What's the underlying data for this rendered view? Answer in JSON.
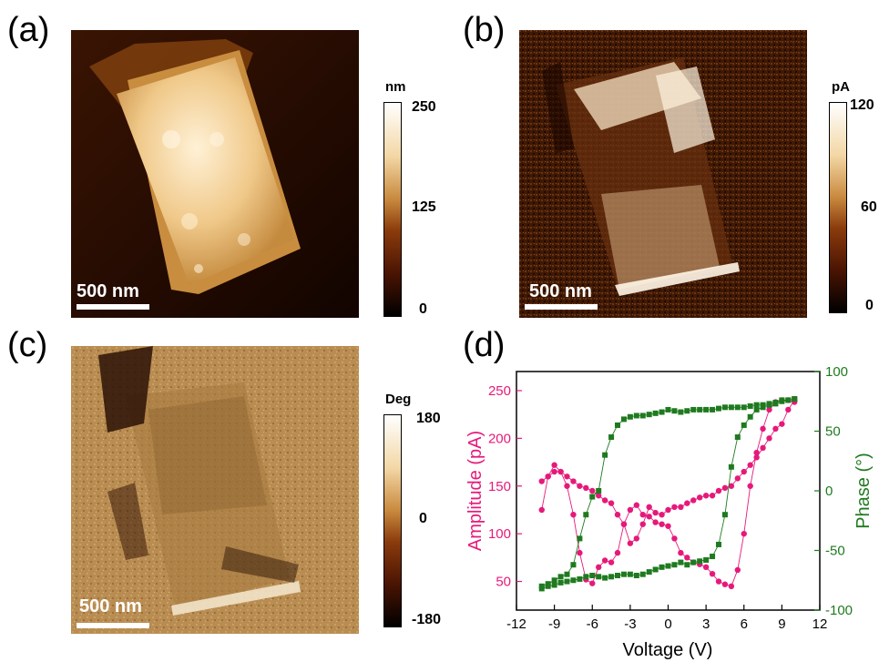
{
  "panels": {
    "a": {
      "label": "(a)",
      "scalebar": "500 nm",
      "colorbar": {
        "unit": "nm",
        "max": "250",
        "mid": "125",
        "min": "0"
      }
    },
    "b": {
      "label": "(b)",
      "scalebar": "500 nm",
      "colorbar": {
        "unit": "pA",
        "max": "120",
        "mid": "60",
        "min": "0"
      }
    },
    "c": {
      "label": "(c)",
      "scalebar": "500 nm",
      "colorbar": {
        "unit": "Deg",
        "max": "180",
        "mid": "0",
        "min": "-180"
      }
    },
    "d": {
      "label": "(d)"
    }
  },
  "colors": {
    "amplitude": "#e6197a",
    "phase": "#1f7a1f",
    "height_map": "afmhot",
    "bg": "#ffffff"
  },
  "chart_data": {
    "type": "scatter",
    "xlabel": "Voltage (V)",
    "ylabel_left": "Amplitude (pA)",
    "ylabel_right": "Phase (°)",
    "xlim": [
      -12,
      12
    ],
    "ylim_left": [
      20,
      270
    ],
    "ylim_right": [
      -100,
      100
    ],
    "xticks": [
      "-12",
      "-9",
      "-6",
      "-3",
      "0",
      "3",
      "6",
      "9",
      "12"
    ],
    "yticks_left": [
      "50",
      "100",
      "150",
      "200",
      "250"
    ],
    "yticks_right": [
      "-100",
      "-50",
      "0",
      "50",
      "100"
    ],
    "series": [
      {
        "axis": "left",
        "marker": "circle",
        "x": [
          -10,
          -9.5,
          -9,
          -8.5,
          -8,
          -7.5,
          -7,
          -6.5,
          -6,
          -5.5,
          -5,
          -4.5,
          -4,
          -3.5,
          -3,
          -2.5,
          -2,
          -1.5,
          -1,
          -0.5,
          0,
          0.5,
          1,
          1.5,
          2,
          2.5,
          3,
          3.5,
          4,
          4.5,
          5,
          5.5,
          6,
          6.5,
          7,
          7.5,
          8,
          8.5,
          9,
          9.5,
          10,
          10,
          9.5,
          9,
          8.5,
          8,
          7.5,
          7,
          6.5,
          6,
          5.5,
          5,
          4.5,
          4,
          3.5,
          3,
          2.5,
          2,
          1.5,
          1,
          0.5,
          0,
          -0.5,
          -1,
          -1.5,
          -2,
          -2.5,
          -3,
          -3.5,
          -4,
          -4.5,
          -5,
          -5.5,
          -6,
          -6.5,
          -7,
          -7.5,
          -8,
          -8.5,
          -9,
          -9.5,
          -10
        ],
        "y": [
          125,
          160,
          172,
          165,
          150,
          120,
          80,
          52,
          48,
          65,
          72,
          70,
          80,
          110,
          125,
          130,
          120,
          118,
          112,
          110,
          108,
          95,
          80,
          75,
          70,
          68,
          65,
          58,
          50,
          47,
          45,
          62,
          100,
          150,
          185,
          210,
          230,
          238,
          240,
          240,
          238,
          240,
          230,
          215,
          210,
          200,
          190,
          180,
          172,
          165,
          158,
          150,
          148,
          145,
          140,
          140,
          138,
          135,
          132,
          128,
          128,
          125,
          120,
          122,
          128,
          110,
          95,
          90,
          110,
          120,
          132,
          135,
          140,
          145,
          148,
          150,
          155,
          160,
          165,
          165,
          160,
          155
        ]
      },
      {
        "axis": "right",
        "marker": "square",
        "x": [
          -10,
          -9.5,
          -9,
          -8.5,
          -8,
          -7.5,
          -7,
          -6.5,
          -6,
          -5.5,
          -5,
          -4.5,
          -4,
          -3.5,
          -3,
          -2.5,
          -2,
          -1.5,
          -1,
          -0.5,
          0,
          0.5,
          1,
          1.5,
          2,
          2.5,
          3,
          3.5,
          4,
          4.5,
          5,
          5.5,
          6,
          6.5,
          7,
          7.5,
          8,
          8.5,
          9,
          9.5,
          10,
          10,
          9.5,
          9,
          8.5,
          8,
          7.5,
          7,
          6.5,
          6,
          5.5,
          5,
          4.5,
          4,
          3.5,
          3,
          2.5,
          2,
          1.5,
          1,
          0.5,
          0,
          -0.5,
          -1,
          -1.5,
          -2,
          -2.5,
          -3,
          -3.5,
          -4,
          -4.5,
          -5,
          -5.5,
          -6,
          -6.5,
          -7,
          -7.5,
          -8,
          -8.5,
          -9,
          -9.5,
          -10
        ],
        "y": [
          -82,
          -80,
          -79,
          -77,
          -76,
          -75,
          -74,
          -72,
          -71,
          -72,
          -73,
          -72,
          -71,
          -70,
          -70,
          -71,
          -70,
          -68,
          -66,
          -64,
          -63,
          -62,
          -60,
          -62,
          -60,
          -59,
          -58,
          -55,
          -45,
          -20,
          20,
          45,
          55,
          62,
          68,
          70,
          72,
          73,
          75,
          76,
          77,
          77,
          76,
          76,
          74,
          73,
          72,
          72,
          71,
          70,
          70,
          70,
          70,
          69,
          68,
          68,
          68,
          68,
          67,
          66,
          67,
          68,
          66,
          65,
          64,
          63,
          63,
          62,
          60,
          55,
          45,
          30,
          0,
          -5,
          -20,
          -40,
          -62,
          -70,
          -72,
          -75,
          -78,
          -80
        ]
      }
    ]
  }
}
